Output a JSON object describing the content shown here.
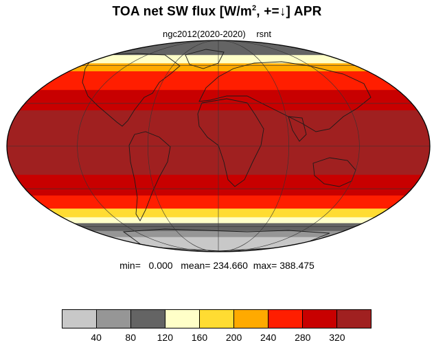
{
  "title": {
    "main": "TOA net SW flux [W/m",
    "sup": "2",
    "rest": ", +=↓]  APR"
  },
  "subtitle": {
    "dataset": "ngc2012(2020-2020)",
    "variable": "rsnt"
  },
  "stats": {
    "text": "min=   0.000   mean= 234.660  max= 388.475",
    "min": 0.0,
    "mean": 234.66,
    "max": 388.475
  },
  "colorbar": {
    "colors": [
      "#c8c8c8",
      "#969696",
      "#646464",
      "#ffffc8",
      "#ffdc32",
      "#ffaa00",
      "#ff1e00",
      "#c80000",
      "#a02020"
    ],
    "labels": [
      "40",
      "80",
      "120",
      "160",
      "200",
      "240",
      "280",
      "320"
    ]
  },
  "map": {
    "projection": "mollweide",
    "zonal_bands_lat_from_north": [
      {
        "lat": 90,
        "level": 2
      },
      {
        "lat": 70,
        "level": 3
      },
      {
        "lat": 62,
        "level": 5
      },
      {
        "lat": 55,
        "level": 6
      },
      {
        "lat": 40,
        "level": 7
      },
      {
        "lat": 25,
        "level": 8
      },
      {
        "lat": -20,
        "level": 7
      },
      {
        "lat": -35,
        "level": 6
      },
      {
        "lat": -45,
        "level": 4
      },
      {
        "lat": -52,
        "level": 3
      },
      {
        "lat": -57,
        "level": 2
      },
      {
        "lat": -64,
        "level": 1
      },
      {
        "lat": -70,
        "level": 0
      }
    ]
  }
}
